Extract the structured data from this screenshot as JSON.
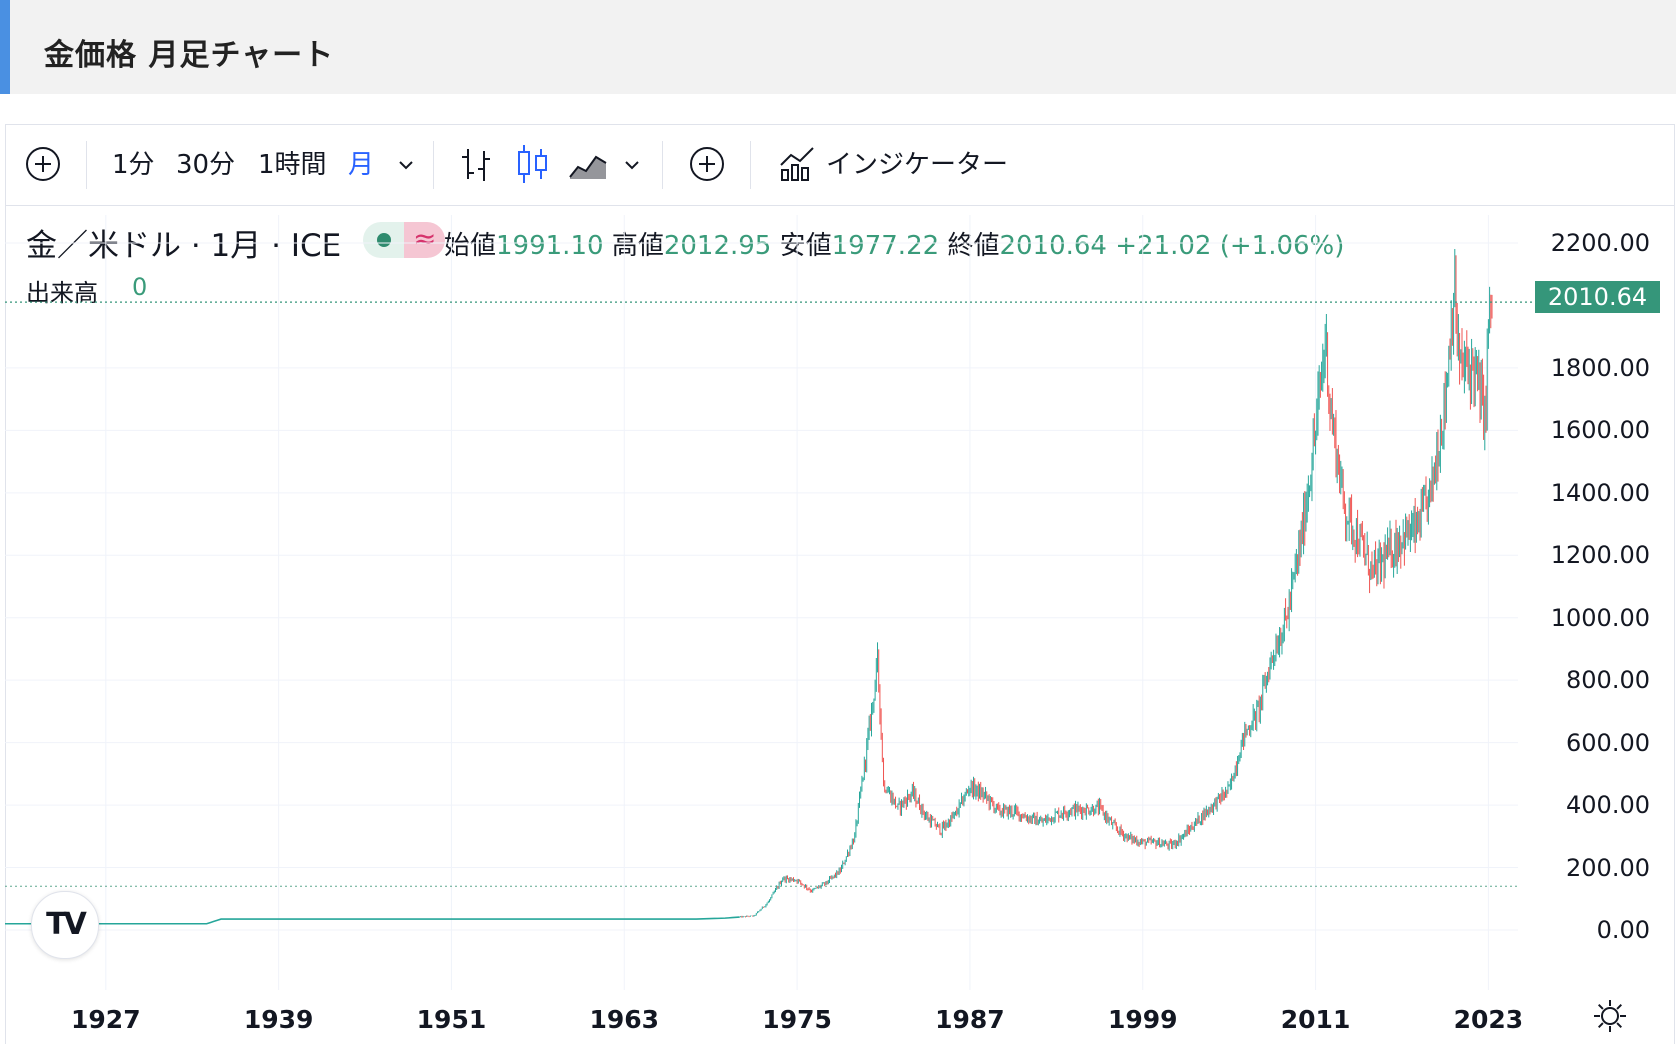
{
  "page": {
    "title": "金価格 月足チャート"
  },
  "toolbar": {
    "intervals": [
      "1分",
      "30分",
      "1時間",
      "月"
    ],
    "active_interval": "月",
    "indicators_label": "インジケーター",
    "icons": [
      "add-symbol-icon",
      "chevron-down-icon",
      "bar-style-icon",
      "candle-style-icon",
      "area-style-icon",
      "chevron-down-icon",
      "compare-add-icon",
      "indicators-icon"
    ]
  },
  "legend": {
    "symbol": "金／米ドル · 1月 · ICE",
    "open_label": "始値",
    "open": "1991.10",
    "high_label": "高値",
    "high": "2012.95",
    "low_label": "安値",
    "low": "1977.22",
    "close_label": "終値",
    "close": "2010.64",
    "change": "+21.02 (+1.06%)",
    "volume_label": "出来高",
    "volume": "0"
  },
  "colors": {
    "up": "#26a69a",
    "down": "#ef5350",
    "accent": "#2962ff",
    "last_price": "#35967a"
  },
  "chart_data": {
    "type": "candlestick",
    "x_label": "",
    "y_label": "",
    "y_ticks": [
      "0.00",
      "200.00",
      "400.00",
      "600.00",
      "800.00",
      "1000.00",
      "1200.00",
      "1400.00",
      "1600.00",
      "1800.00",
      "2200.00"
    ],
    "x_ticks": [
      "1927",
      "1939",
      "1951",
      "1963",
      "1975",
      "1987",
      "1999",
      "2011",
      "2023"
    ],
    "ylim": [
      0,
      2200
    ],
    "xlim": [
      1920,
      2025
    ],
    "last_price_label": "2010.64",
    "last_price": 2010.64,
    "reference_price": 140,
    "grid": true,
    "series": [
      {
        "x": [
          1920,
          1934,
          1935,
          1968,
          1970,
          1972,
          1973,
          1974,
          1975,
          1976,
          1977,
          1978,
          1979,
          1980,
          1980.6,
          1981,
          1982,
          1983,
          1984,
          1985,
          1986,
          1987,
          1988,
          1989,
          1990,
          1991,
          1992,
          1993,
          1994,
          1995,
          1996,
          1997,
          1998,
          1999,
          2000,
          2001,
          2002,
          2003,
          2004,
          2005,
          2006,
          2007,
          2008,
          2009,
          2010,
          2011,
          2011.7,
          2012,
          2013,
          2014,
          2015,
          2016,
          2017,
          2018,
          2019,
          2020,
          2020.6,
          2021,
          2022,
          2022.8,
          2023,
          2023.3
        ],
        "values": [
          20,
          20,
          35,
          35,
          38,
          45,
          90,
          165,
          160,
          125,
          150,
          190,
          300,
          640,
          860,
          470,
          390,
          440,
          360,
          320,
          370,
          460,
          430,
          380,
          380,
          360,
          345,
          370,
          385,
          385,
          390,
          330,
          295,
          280,
          280,
          270,
          310,
          360,
          405,
          450,
          620,
          700,
          880,
          1000,
          1250,
          1600,
          1900,
          1680,
          1350,
          1250,
          1140,
          1200,
          1260,
          1280,
          1400,
          1700,
          2060,
          1800,
          1800,
          1640,
          1950,
          2010.64
        ]
      }
    ]
  }
}
